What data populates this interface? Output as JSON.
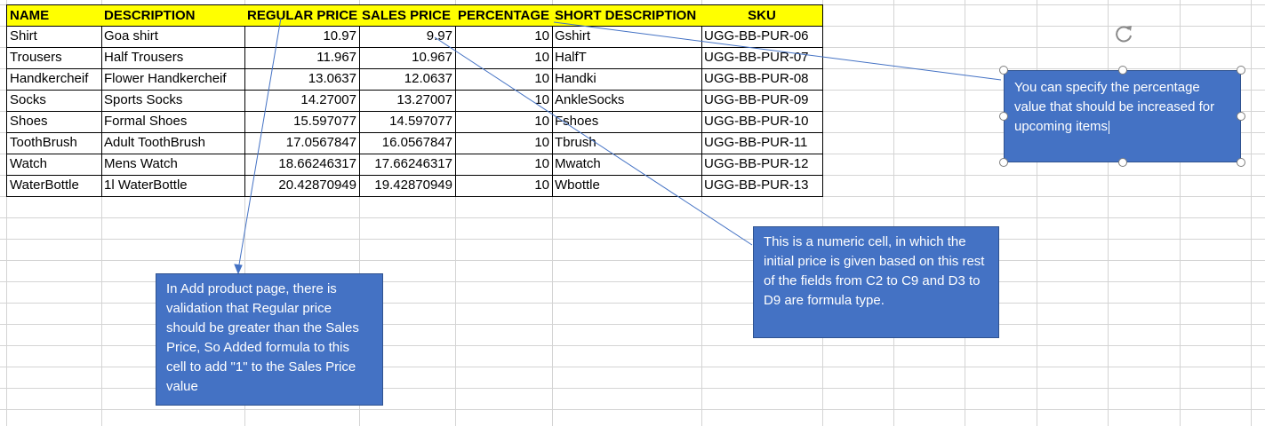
{
  "table": {
    "headers": [
      "NAME",
      "DESCRIPTION",
      "REGULAR PRICE",
      "SALES PRICE",
      "PERCENTAGE",
      "SHORT DESCRIPTION",
      "SKU"
    ],
    "rows": [
      [
        "Shirt",
        "Goa shirt",
        "10.97",
        "9.97",
        "10",
        "Gshirt",
        "UGG-BB-PUR-06"
      ],
      [
        "Trousers",
        "Half Trousers",
        "11.967",
        "10.967",
        "10",
        "HalfT",
        "UGG-BB-PUR-07"
      ],
      [
        "Handkercheif",
        "Flower Handkercheif",
        "13.0637",
        "12.0637",
        "10",
        "Handki",
        "UGG-BB-PUR-08"
      ],
      [
        "Socks",
        "Sports Socks",
        "14.27007",
        "13.27007",
        "10",
        "AnkleSocks",
        "UGG-BB-PUR-09"
      ],
      [
        "Shoes",
        "Formal Shoes",
        "15.597077",
        "14.597077",
        "10",
        "Fshoes",
        "UGG-BB-PUR-10"
      ],
      [
        "ToothBrush",
        "Adult ToothBrush",
        "17.0567847",
        "16.0567847",
        "10",
        "Tbrush",
        "UGG-BB-PUR-11"
      ],
      [
        "Watch",
        "Mens Watch",
        "18.66246317",
        "17.66246317",
        "10",
        "Mwatch",
        "UGG-BB-PUR-12"
      ],
      [
        "WaterBottle",
        "1l WaterBottle",
        "20.42870949",
        "19.42870949",
        "10",
        "Wbottle",
        "UGG-BB-PUR-13"
      ]
    ]
  },
  "callouts": {
    "regular_price_note": "In Add product page, there is validation that Regular price should be greater than the Sales Price, So Added formula to this cell to add \"1\" to the Sales Price value",
    "sales_price_note": "This is a numeric cell, in which the initial price is given based on this rest of the fields from C2 to C9 and D3 to D9 are formula type.",
    "percentage_note": "You can specify the percentage value that should be increased for upcoming items"
  },
  "icons": {
    "rotate_handle": "rotate-icon"
  },
  "colors": {
    "header_fill": "#ffff00",
    "callout_fill": "#4472c4",
    "callout_border": "#2f528f",
    "connector": "#4472c4",
    "gridline": "#d4d4d4"
  }
}
